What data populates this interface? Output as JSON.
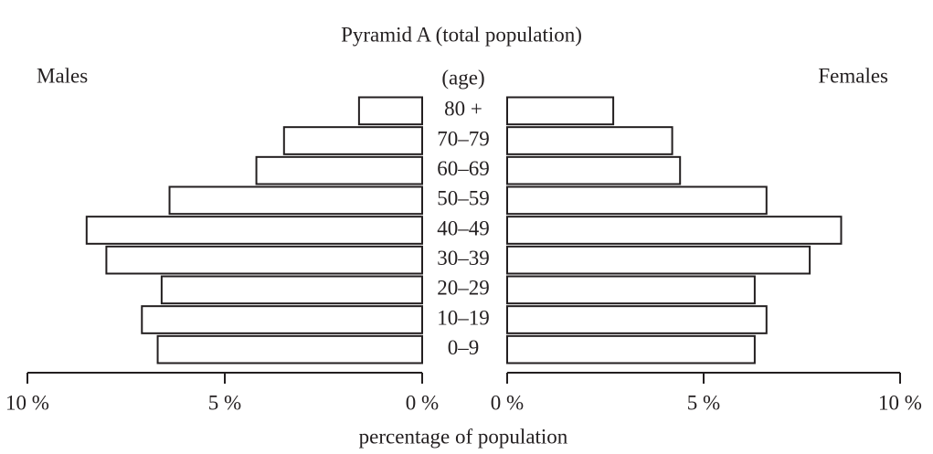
{
  "chart_data": {
    "type": "pyramid",
    "title": "Pyramid A (total population)",
    "category_axis_label": "(age)",
    "x_axis_label": "percentage of population",
    "categories": [
      "0–9",
      "10–19",
      "20–29",
      "30–39",
      "40–49",
      "50–59",
      "60–69",
      "70–79",
      "80 +"
    ],
    "series": [
      {
        "name": "Males",
        "color": "#ffffff",
        "values": [
          6.7,
          7.1,
          6.6,
          8.0,
          8.5,
          6.4,
          4.2,
          3.5,
          1.6
        ]
      },
      {
        "name": "Females",
        "color": "#ffffff",
        "values": [
          6.3,
          6.6,
          6.3,
          7.7,
          8.5,
          6.6,
          4.4,
          4.2,
          2.7
        ]
      }
    ],
    "xlim": [
      0,
      10
    ],
    "xticks": [
      {
        "value": 0,
        "label": "0 %"
      },
      {
        "value": 5,
        "label": "5 %"
      },
      {
        "value": 10,
        "label": "10 %"
      }
    ]
  }
}
